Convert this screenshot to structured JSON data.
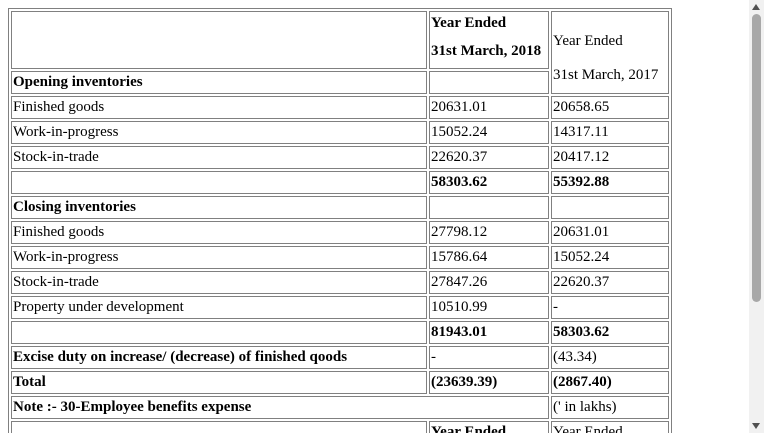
{
  "table": {
    "header": {
      "fy2018": [
        "Year Ended",
        "31st March, 2018"
      ],
      "fy2017": [
        "Year Ended",
        "31st March, 2017"
      ]
    },
    "rows": [
      {
        "label": "Opening inventories"
      },
      {
        "label": "Finished goods",
        "fy2018": "20631.01",
        "fy2017": "20658.65"
      },
      {
        "label": "Work-in-progress",
        "fy2018": "15052.24",
        "fy2017": "14317.11"
      },
      {
        "label": "Stock-in-trade",
        "fy2018": "22620.37",
        "fy2017": "20417.12"
      },
      {
        "fy2018": "58303.62",
        "fy2017": "55392.88"
      },
      {
        "label": "Closing inventories"
      },
      {
        "label": "Finished goods",
        "fy2018": "27798.12",
        "fy2017": "20631.01"
      },
      {
        "label": "Work-in-progress",
        "fy2018": "15786.64",
        "fy2017": "15052.24"
      },
      {
        "label": "Stock-in-trade",
        "fy2018": "27847.26",
        "fy2017": "22620.37"
      },
      {
        "label": "Property under development",
        "fy2018": "10510.99",
        "fy2017": "-"
      },
      {
        "fy2018": "81943.01",
        "fy2017": "58303.62"
      },
      {
        "label": "Excise duty on increase/ (decrease) of finished qoods",
        "fy2018": "-",
        "fy2017": "(43.34)"
      },
      {
        "label": "Total",
        "fy2018": "(23639.39)",
        "fy2017": "(2867.40)"
      },
      {
        "label": "Note :- 30-Employee benefits expense",
        "fy2017": "(' in lakhs)"
      },
      {
        "fy2018": "Year Ended",
        "fy2017": "Year Ended"
      }
    ]
  }
}
